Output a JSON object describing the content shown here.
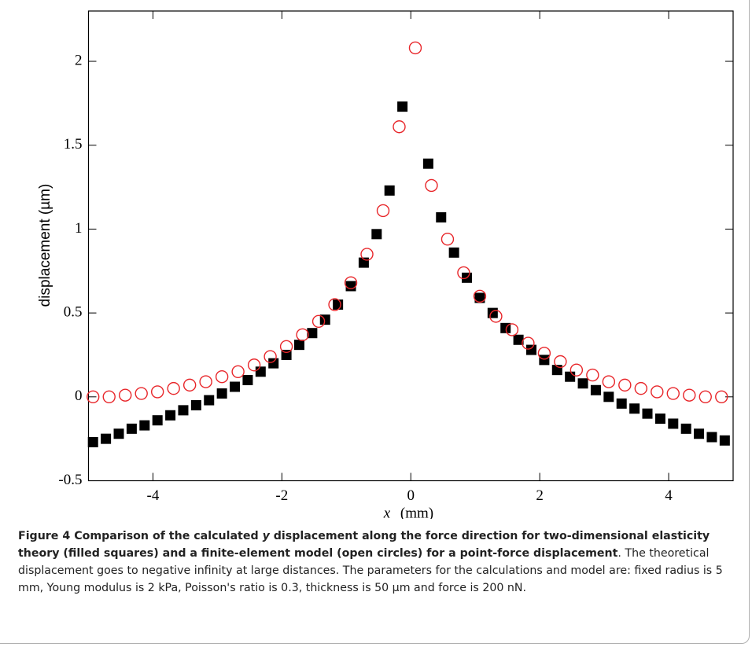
{
  "chart_data": {
    "type": "scatter",
    "ylabel": "displacement (µm)",
    "xlabel_symbol": "x",
    "xlabel_unit": "(mm)",
    "xlim": [
      -5,
      5
    ],
    "ylim": [
      -0.5,
      2.3
    ],
    "xticks": [
      -4,
      -2,
      0,
      2,
      4
    ],
    "yticks": [
      -0.5,
      0,
      0.5,
      1,
      1.5,
      2
    ],
    "series": [
      {
        "marker": "filled-square",
        "color": "#000000",
        "x": [
          -4.93,
          -4.73,
          -4.53,
          -4.33,
          -4.13,
          -3.93,
          -3.73,
          -3.53,
          -3.33,
          -3.13,
          -2.93,
          -2.73,
          -2.53,
          -2.33,
          -2.13,
          -1.93,
          -1.73,
          -1.53,
          -1.33,
          -1.13,
          -0.93,
          -0.73,
          -0.53,
          -0.33,
          -0.13,
          0.27,
          0.47,
          0.67,
          0.87,
          1.07,
          1.27,
          1.47,
          1.67,
          1.87,
          2.07,
          2.27,
          2.47,
          2.67,
          2.87,
          3.07,
          3.27,
          3.47,
          3.67,
          3.87,
          4.07,
          4.27,
          4.47,
          4.67,
          4.87
        ],
        "values": [
          -0.27,
          -0.25,
          -0.22,
          -0.19,
          -0.17,
          -0.14,
          -0.11,
          -0.08,
          -0.05,
          -0.02,
          0.02,
          0.06,
          0.1,
          0.15,
          0.2,
          0.25,
          0.31,
          0.38,
          0.46,
          0.55,
          0.66,
          0.8,
          0.97,
          1.23,
          1.73,
          1.39,
          1.07,
          0.86,
          0.71,
          0.59,
          0.5,
          0.41,
          0.34,
          0.28,
          0.22,
          0.16,
          0.12,
          0.08,
          0.04,
          0.0,
          -0.04,
          -0.07,
          -0.1,
          -0.13,
          -0.16,
          -0.19,
          -0.22,
          -0.24,
          -0.26
        ]
      },
      {
        "marker": "open-circle",
        "color": "#e8262a",
        "x": [
          -4.93,
          -4.68,
          -4.43,
          -4.18,
          -3.93,
          -3.68,
          -3.43,
          -3.18,
          -2.93,
          -2.68,
          -2.43,
          -2.18,
          -1.93,
          -1.68,
          -1.43,
          -1.18,
          -0.93,
          -0.68,
          -0.43,
          -0.18,
          0.07,
          0.32,
          0.57,
          0.82,
          1.07,
          1.32,
          1.57,
          1.82,
          2.07,
          2.32,
          2.57,
          2.82,
          3.07,
          3.32,
          3.57,
          3.82,
          4.07,
          4.32,
          4.57,
          4.82
        ],
        "values": [
          0.0,
          0.0,
          0.01,
          0.02,
          0.03,
          0.05,
          0.07,
          0.09,
          0.12,
          0.15,
          0.19,
          0.24,
          0.3,
          0.37,
          0.45,
          0.55,
          0.68,
          0.85,
          1.11,
          1.61,
          2.08,
          1.26,
          0.94,
          0.74,
          0.6,
          0.48,
          0.4,
          0.32,
          0.26,
          0.21,
          0.16,
          0.13,
          0.09,
          0.07,
          0.05,
          0.03,
          0.02,
          0.01,
          0.0,
          0.0
        ]
      }
    ]
  },
  "caption": {
    "label": "Figure 4",
    "bold_1": " Comparison of the calculated ",
    "bold_italic": "y",
    "bold_2": " displacement along the force direction for two-dimensional elasticity theory (filled squares) and a finite-element model (open circles) for a point-force displacement",
    "text": ". The theoretical displacement goes to negative infinity at large distances. The parameters for the calculations and model are: fixed radius is 5 mm, Young modulus is 2 kPa, Poisson's ratio is 0.3, thickness is 50 µm and force is 200 nN."
  }
}
